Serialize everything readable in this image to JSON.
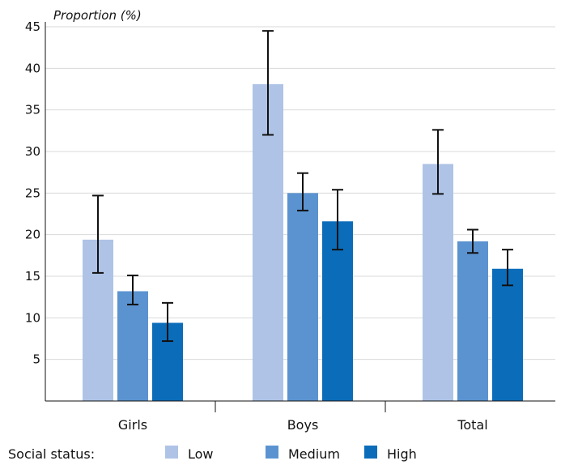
{
  "chart_data": {
    "type": "bar",
    "ylabel": "Proportion (%)",
    "ylim": [
      0,
      45
    ],
    "yticks": [
      5,
      10,
      15,
      20,
      25,
      30,
      35,
      40,
      45
    ],
    "grid": true,
    "categories": [
      "Girls",
      "Boys",
      "Total"
    ],
    "legend": {
      "title": "Social status:",
      "placement": "bottom"
    },
    "series": [
      {
        "name": "Low",
        "color": "#aec3e6",
        "values": [
          19.4,
          38.1,
          28.5
        ],
        "err_low": [
          15.4,
          32.0,
          24.9
        ],
        "err_high": [
          24.7,
          44.5,
          32.6
        ]
      },
      {
        "name": "Medium",
        "color": "#5b93d0",
        "values": [
          13.2,
          25.0,
          19.2
        ],
        "err_low": [
          11.6,
          22.9,
          17.8
        ],
        "err_high": [
          15.1,
          27.4,
          20.6
        ]
      },
      {
        "name": "High",
        "color": "#0b6dba",
        "values": [
          9.4,
          21.6,
          15.9
        ],
        "err_low": [
          7.2,
          18.2,
          13.9
        ],
        "err_high": [
          11.8,
          25.4,
          18.2
        ]
      }
    ]
  }
}
